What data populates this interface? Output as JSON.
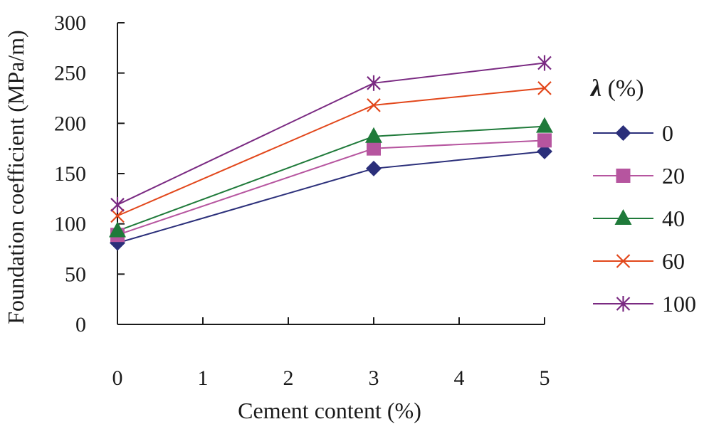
{
  "chart_data": {
    "type": "line",
    "title": "",
    "xlabel": "Cement content (%)",
    "ylabel": "Foundation coefficient (MPa/m)",
    "xlim": [
      0,
      5
    ],
    "ylim": [
      0,
      300
    ],
    "xticks": [
      "0",
      "1",
      "2",
      "3",
      "4",
      "5"
    ],
    "yticks": [
      "0",
      "50",
      "100",
      "150",
      "200",
      "250",
      "300"
    ],
    "grid": false,
    "legend": {
      "title_symbol": "λ",
      "title_unit": "(%)",
      "placement": "right"
    },
    "x": [
      0,
      3,
      5
    ],
    "series": [
      {
        "name": "0",
        "color": "#2b2f7a",
        "marker": "diamond",
        "values": [
          81,
          155,
          172
        ]
      },
      {
        "name": "20",
        "color": "#b6559f",
        "marker": "square",
        "values": [
          89,
          175,
          183
        ]
      },
      {
        "name": "40",
        "color": "#1f7a3a",
        "marker": "triangle",
        "values": [
          93,
          187,
          197
        ]
      },
      {
        "name": "60",
        "color": "#e2471b",
        "marker": "x",
        "values": [
          108,
          218,
          235
        ]
      },
      {
        "name": "100",
        "color": "#7a2a82",
        "marker": "star",
        "values": [
          119,
          240,
          260
        ]
      }
    ]
  }
}
